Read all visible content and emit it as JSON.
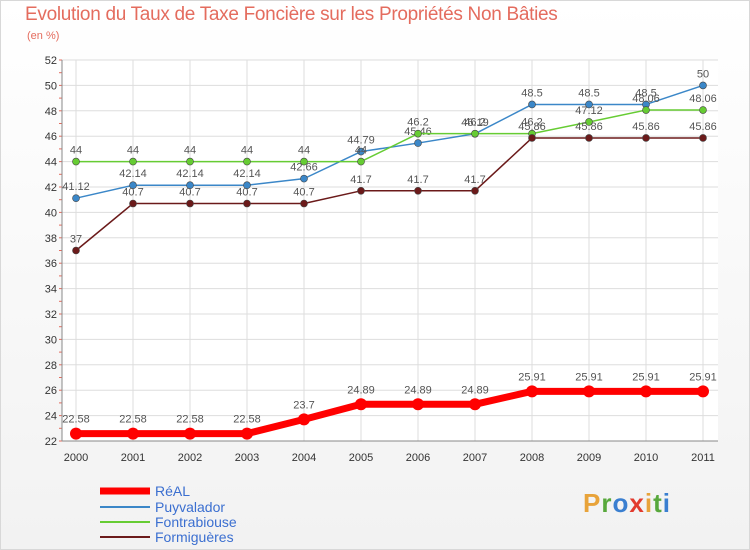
{
  "title": "Evolution du Taux de Taxe Foncière sur les Propriétés Non Bâties",
  "subtitle": "(en %)",
  "logo": {
    "text": "Proxiti",
    "letters": [
      {
        "ch": "P",
        "color": "#e8a33a"
      },
      {
        "ch": "r",
        "color": "#58a83c"
      },
      {
        "ch": "o",
        "color": "#3a7fd0"
      },
      {
        "ch": "x",
        "color": "#e23b2e"
      },
      {
        "ch": "i",
        "color": "#e8a33a"
      },
      {
        "ch": "t",
        "color": "#58a83c"
      },
      {
        "ch": "i",
        "color": "#3a7fd0"
      }
    ]
  },
  "chart_data": {
    "type": "line",
    "title": "Evolution du Taux de Taxe Foncière sur les Propriétés Non Bâties",
    "ylabel": "(en %)",
    "xlabel": "",
    "categories": [
      "2000",
      "2001",
      "2002",
      "2003",
      "2004",
      "2005",
      "2006",
      "2007",
      "2008",
      "2009",
      "2010",
      "2011"
    ],
    "ylim": [
      22,
      52
    ],
    "yticks": [
      22,
      24,
      26,
      28,
      30,
      32,
      34,
      36,
      38,
      40,
      42,
      44,
      46,
      48,
      50,
      52
    ],
    "grid": true,
    "legend": "bottom-left",
    "series": [
      {
        "name": "RéAL",
        "color": "#ff0000",
        "values": [
          22.58,
          22.58,
          22.58,
          22.58,
          23.7,
          24.89,
          24.89,
          24.89,
          25.91,
          25.91,
          25.91,
          25.91
        ],
        "labels": [
          "22.58",
          "22.58",
          "22.58",
          "22.58",
          "23.7",
          "24.89",
          "24.89",
          "24.89",
          "25.91",
          "25.91",
          "25.91",
          "25.91"
        ]
      },
      {
        "name": "Puyvalador",
        "color": "#3b87c8",
        "values": [
          41.12,
          42.14,
          42.14,
          42.14,
          42.66,
          44.79,
          45.46,
          46.19,
          48.5,
          48.5,
          48.5,
          50
        ],
        "labels": [
          "41.12",
          "42.14",
          "42.14",
          "42.14",
          "42.66",
          "44.79",
          "45.46",
          "46.19",
          "48.5",
          "48.5",
          "48.5",
          "50"
        ]
      },
      {
        "name": "Fontrabiouse",
        "color": "#66cc33",
        "values": [
          44,
          44,
          44,
          44,
          44,
          44,
          46.2,
          46.2,
          46.2,
          47.12,
          48.06,
          48.06
        ],
        "labels": [
          "44",
          "44",
          "44",
          "44",
          "44",
          "44",
          "46.2",
          "46.2",
          "46.2",
          "47.12",
          "48.06",
          "48.06"
        ]
      },
      {
        "name": "Formiguères",
        "color": "#6b1a1a",
        "values": [
          37,
          40.7,
          40.7,
          40.7,
          40.7,
          41.7,
          41.7,
          41.7,
          45.86,
          45.86,
          45.86,
          45.86
        ],
        "labels": [
          "37",
          "40.7",
          "40.7",
          "40.7",
          "40.7",
          "41.7",
          "41.7",
          "41.7",
          "45.86",
          "45.86",
          "45.86",
          "45.86"
        ]
      }
    ]
  }
}
